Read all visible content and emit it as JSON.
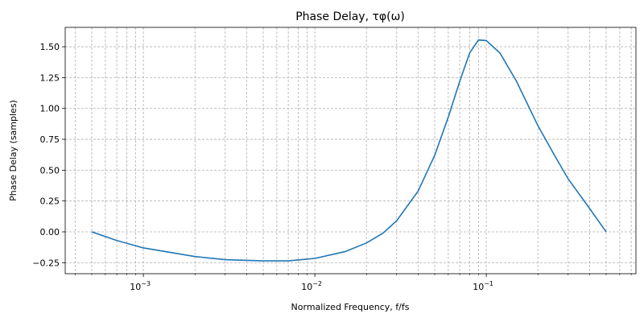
{
  "chart_data": {
    "type": "line",
    "title": "Phase Delay, τφ(ω)",
    "xlabel": "Normalized Frequency, f/fs",
    "ylabel": "Phase Delay (samples)",
    "x": [
      0.0005,
      0.0007,
      0.001,
      0.002,
      0.003,
      0.005,
      0.007,
      0.01,
      0.015,
      0.02,
      0.025,
      0.03,
      0.04,
      0.05,
      0.06,
      0.07,
      0.08,
      0.09,
      0.1,
      0.12,
      0.15,
      0.2,
      0.25,
      0.3,
      0.4,
      0.5
    ],
    "values": [
      0.0,
      -0.07,
      -0.13,
      -0.2,
      -0.225,
      -0.235,
      -0.235,
      -0.215,
      -0.16,
      -0.09,
      -0.01,
      0.09,
      0.33,
      0.62,
      0.93,
      1.22,
      1.45,
      1.555,
      1.55,
      1.45,
      1.22,
      0.86,
      0.62,
      0.43,
      0.19,
      0.0
    ],
    "color": "#1f77b4",
    "xscale": "log",
    "xlim": [
      0.00035,
      0.746
    ],
    "ylim": [
      -0.339,
      1.657
    ],
    "xticks": [
      {
        "value": 0.001,
        "label": "10",
        "exponent": "−3"
      },
      {
        "value": 0.01,
        "label": "10",
        "exponent": "−2"
      },
      {
        "value": 0.1,
        "label": "10",
        "exponent": "−1"
      }
    ],
    "xminorticks": [
      0.0004,
      0.0005,
      0.0006,
      0.0007,
      0.0008,
      0.0009,
      0.002,
      0.003,
      0.004,
      0.005,
      0.006,
      0.007,
      0.008,
      0.009,
      0.02,
      0.03,
      0.04,
      0.05,
      0.06,
      0.07,
      0.08,
      0.09,
      0.2,
      0.3,
      0.4,
      0.5,
      0.6,
      0.7
    ],
    "yticks": [
      {
        "value": -0.25,
        "label": "−0.25"
      },
      {
        "value": 0,
        "label": "0.00"
      },
      {
        "value": 0.25,
        "label": "0.25"
      },
      {
        "value": 0.5,
        "label": "0.50"
      },
      {
        "value": 0.75,
        "label": "0.75"
      },
      {
        "value": 1,
        "label": "1.00"
      },
      {
        "value": 1.25,
        "label": "1.25"
      },
      {
        "value": 1.5,
        "label": "1.50"
      }
    ],
    "grid": "both"
  }
}
